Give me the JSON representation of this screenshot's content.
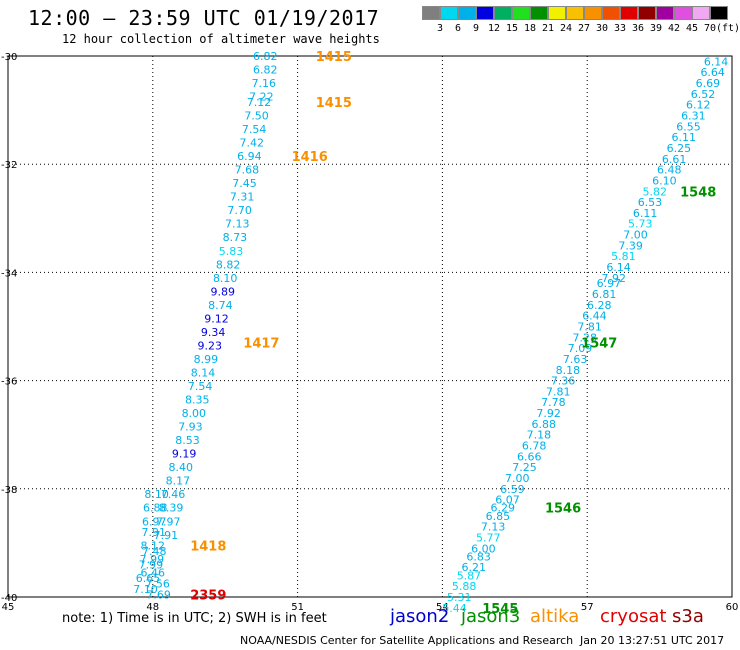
{
  "header": {
    "title": "12:00 – 23:59 UTC 01/19/2017",
    "subtitle": "12 hour collection of altimeter wave heights"
  },
  "color_scale": {
    "colors": [
      "#7f7f7f",
      "#00d8f0",
      "#00b0e8",
      "#0000e0",
      "#00b060",
      "#20e020",
      "#009000",
      "#f0f000",
      "#f8c000",
      "#f89000",
      "#f05000",
      "#e00000",
      "#900000",
      "#a000a0",
      "#e050e0",
      "#f0a8f0",
      "#000000"
    ],
    "labels": [
      "3",
      "6",
      "9",
      "12",
      "15",
      "18",
      "21",
      "24",
      "27",
      "30",
      "33",
      "36",
      "39",
      "42",
      "45",
      "70",
      "(ft)"
    ]
  },
  "chart_data": {
    "type": "scatter",
    "xlim": [
      45,
      60
    ],
    "ylim": [
      -40,
      -30
    ],
    "x_ticks": [
      "45",
      "48",
      "51",
      "54",
      "57",
      "60"
    ],
    "y_ticks": [
      "-30",
      "-32",
      "-34",
      "-36",
      "-38",
      "-40"
    ],
    "grid": true,
    "series": [
      {
        "name": "track1",
        "points": [
          {
            "lon": 50.33,
            "lat": -30.0,
            "v": "6.82",
            "c": "#00b0e8"
          },
          {
            "lon": 50.33,
            "lat": -30.25,
            "v": "6.82",
            "c": "#00b0e8"
          },
          {
            "lon": 50.3,
            "lat": -30.5,
            "v": "7.16",
            "c": "#00b0e8"
          },
          {
            "lon": 50.25,
            "lat": -30.75,
            "v": "7.22",
            "c": "#00b0e8"
          },
          {
            "lon": 50.2,
            "lat": -30.85,
            "v": "7.12",
            "c": "#00b0e8"
          },
          {
            "lon": 50.15,
            "lat": -31.1,
            "v": "7.50",
            "c": "#00b0e8"
          },
          {
            "lon": 50.1,
            "lat": -31.35,
            "v": "7.54",
            "c": "#00b0e8"
          },
          {
            "lon": 50.05,
            "lat": -31.6,
            "v": "7.42",
            "c": "#00b0e8"
          },
          {
            "lon": 50.0,
            "lat": -31.85,
            "v": "6.94",
            "c": "#00b0e8"
          },
          {
            "lon": 49.95,
            "lat": -32.1,
            "v": "7.68",
            "c": "#00b0e8"
          },
          {
            "lon": 49.9,
            "lat": -32.35,
            "v": "7.45",
            "c": "#00b0e8"
          },
          {
            "lon": 49.85,
            "lat": -32.6,
            "v": "7.31",
            "c": "#00b0e8"
          },
          {
            "lon": 49.8,
            "lat": -32.85,
            "v": "7.70",
            "c": "#00b0e8"
          },
          {
            "lon": 49.75,
            "lat": -33.1,
            "v": "7.13",
            "c": "#00b0e8"
          },
          {
            "lon": 49.7,
            "lat": -33.35,
            "v": "8.73",
            "c": "#00b0e8"
          },
          {
            "lon": 49.62,
            "lat": -33.6,
            "v": "5.83",
            "c": "#00d8f0"
          },
          {
            "lon": 49.56,
            "lat": -33.85,
            "v": "8.82",
            "c": "#00b0e8"
          },
          {
            "lon": 49.5,
            "lat": -34.1,
            "v": "8.10",
            "c": "#00b0e8"
          },
          {
            "lon": 49.45,
            "lat": -34.35,
            "v": "9.89",
            "c": "#0000e0"
          },
          {
            "lon": 49.4,
            "lat": -34.6,
            "v": "8.74",
            "c": "#00b0e8"
          },
          {
            "lon": 49.32,
            "lat": -34.85,
            "v": "9.12",
            "c": "#0000e0"
          },
          {
            "lon": 49.25,
            "lat": -35.1,
            "v": "9.34",
            "c": "#0000e0"
          },
          {
            "lon": 49.18,
            "lat": -35.35,
            "v": "9.23",
            "c": "#0000e0"
          },
          {
            "lon": 49.1,
            "lat": -35.6,
            "v": "8.99",
            "c": "#00b0e8"
          },
          {
            "lon": 49.04,
            "lat": -35.85,
            "v": "8.14",
            "c": "#00b0e8"
          },
          {
            "lon": 48.98,
            "lat": -36.1,
            "v": "7.54",
            "c": "#00b0e8"
          },
          {
            "lon": 48.92,
            "lat": -36.35,
            "v": "8.35",
            "c": "#00b0e8"
          },
          {
            "lon": 48.85,
            "lat": -36.6,
            "v": "8.00",
            "c": "#00b0e8"
          },
          {
            "lon": 48.78,
            "lat": -36.85,
            "v": "7.93",
            "c": "#00b0e8"
          },
          {
            "lon": 48.72,
            "lat": -37.1,
            "v": "8.53",
            "c": "#00b0e8"
          },
          {
            "lon": 48.65,
            "lat": -37.35,
            "v": "9.19",
            "c": "#0000e0"
          },
          {
            "lon": 48.58,
            "lat": -37.6,
            "v": "8.40",
            "c": "#00b0e8"
          },
          {
            "lon": 48.52,
            "lat": -37.85,
            "v": "8.17",
            "c": "#00b0e8"
          },
          {
            "lon": 48.42,
            "lat": -38.1,
            "v": "7.46",
            "c": "#00b0e8"
          },
          {
            "lon": 48.38,
            "lat": -38.35,
            "v": "8.39",
            "c": "#00b0e8"
          },
          {
            "lon": 48.32,
            "lat": -38.6,
            "v": "7.97",
            "c": "#00b0e8"
          },
          {
            "lon": 48.27,
            "lat": -38.85,
            "v": "7.91",
            "c": "#00b0e8"
          }
        ]
      },
      {
        "name": "track2",
        "points": [
          {
            "lon": 48.08,
            "lat": -38.1,
            "v": "8.10",
            "c": "#00b0e8"
          },
          {
            "lon": 48.05,
            "lat": -38.35,
            "v": "6.88",
            "c": "#00b0e8"
          },
          {
            "lon": 48.03,
            "lat": -38.6,
            "v": "6.97",
            "c": "#00b0e8"
          },
          {
            "lon": 48.02,
            "lat": -38.8,
            "v": "7.91",
            "c": "#00b0e8"
          },
          {
            "lon": 48.0,
            "lat": -39.05,
            "v": "8.12",
            "c": "#00b0e8"
          },
          {
            "lon": 48.03,
            "lat": -39.15,
            "v": "7.48",
            "c": "#00b0e8"
          },
          {
            "lon": 47.98,
            "lat": -39.3,
            "v": "7.99",
            "c": "#00b0e8"
          },
          {
            "lon": 47.96,
            "lat": -39.4,
            "v": "7.99",
            "c": "#00b0e8"
          },
          {
            "lon": 48.0,
            "lat": -39.55,
            "v": "6.46",
            "c": "#00b0e8"
          },
          {
            "lon": 47.9,
            "lat": -39.65,
            "v": "6.65",
            "c": "#00b0e8"
          },
          {
            "lon": 48.1,
            "lat": -39.75,
            "v": "7.56",
            "c": "#00b0e8"
          },
          {
            "lon": 47.85,
            "lat": -39.85,
            "v": "7.10",
            "c": "#00b0e8"
          },
          {
            "lon": 48.12,
            "lat": -39.95,
            "v": "7.69",
            "c": "#00b0e8"
          }
        ]
      },
      {
        "name": "track3",
        "points": [
          {
            "lon": 59.67,
            "lat": -30.1,
            "v": "6.14",
            "c": "#00b0e8"
          },
          {
            "lon": 59.6,
            "lat": -30.3,
            "v": "6.64",
            "c": "#00b0e8"
          },
          {
            "lon": 59.5,
            "lat": -30.5,
            "v": "6.69",
            "c": "#00b0e8"
          },
          {
            "lon": 59.4,
            "lat": -30.7,
            "v": "6.52",
            "c": "#00b0e8"
          },
          {
            "lon": 59.3,
            "lat": -30.9,
            "v": "6.12",
            "c": "#00b0e8"
          },
          {
            "lon": 59.2,
            "lat": -31.1,
            "v": "6.31",
            "c": "#00b0e8"
          },
          {
            "lon": 59.1,
            "lat": -31.3,
            "v": "6.55",
            "c": "#00b0e8"
          },
          {
            "lon": 59.0,
            "lat": -31.5,
            "v": "6.11",
            "c": "#00b0e8"
          },
          {
            "lon": 58.9,
            "lat": -31.7,
            "v": "6.25",
            "c": "#00b0e8"
          },
          {
            "lon": 58.8,
            "lat": -31.9,
            "v": "6.61",
            "c": "#00b0e8"
          },
          {
            "lon": 58.7,
            "lat": -32.1,
            "v": "6.48",
            "c": "#00b0e8"
          },
          {
            "lon": 58.6,
            "lat": -32.3,
            "v": "6.10",
            "c": "#00b0e8"
          },
          {
            "lon": 58.4,
            "lat": -32.5,
            "v": "5.82",
            "c": "#00d8f0"
          },
          {
            "lon": 58.3,
            "lat": -32.7,
            "v": "6.53",
            "c": "#00b0e8"
          },
          {
            "lon": 58.2,
            "lat": -32.9,
            "v": "6.11",
            "c": "#00b0e8"
          },
          {
            "lon": 58.1,
            "lat": -33.1,
            "v": "5.73",
            "c": "#00d8f0"
          },
          {
            "lon": 58.0,
            "lat": -33.3,
            "v": "7.00",
            "c": "#00b0e8"
          },
          {
            "lon": 57.9,
            "lat": -33.5,
            "v": "7.39",
            "c": "#00b0e8"
          },
          {
            "lon": 57.75,
            "lat": -33.7,
            "v": "5.81",
            "c": "#00d8f0"
          },
          {
            "lon": 57.65,
            "lat": -33.9,
            "v": "6.14",
            "c": "#00b0e8"
          },
          {
            "lon": 57.55,
            "lat": -34.1,
            "v": "7.92",
            "c": "#00b0e8"
          },
          {
            "lon": 57.45,
            "lat": -34.2,
            "v": "6.97",
            "c": "#00b0e8"
          },
          {
            "lon": 57.35,
            "lat": -34.4,
            "v": "6.81",
            "c": "#00b0e8"
          },
          {
            "lon": 57.25,
            "lat": -34.6,
            "v": "6.28",
            "c": "#00b0e8"
          },
          {
            "lon": 57.15,
            "lat": -34.8,
            "v": "6.44",
            "c": "#00b0e8"
          },
          {
            "lon": 57.05,
            "lat": -35.0,
            "v": "7.81",
            "c": "#00b0e8"
          },
          {
            "lon": 56.95,
            "lat": -35.2,
            "v": "7.28",
            "c": "#00b0e8"
          },
          {
            "lon": 56.85,
            "lat": -35.4,
            "v": "7.09",
            "c": "#00b0e8"
          },
          {
            "lon": 56.75,
            "lat": -35.6,
            "v": "7.63",
            "c": "#00b0e8"
          },
          {
            "lon": 56.6,
            "lat": -35.8,
            "v": "8.18",
            "c": "#00b0e8"
          },
          {
            "lon": 56.5,
            "lat": -36.0,
            "v": "7.36",
            "c": "#00b0e8"
          },
          {
            "lon": 56.4,
            "lat": -36.2,
            "v": "7.81",
            "c": "#00b0e8"
          },
          {
            "lon": 56.3,
            "lat": -36.4,
            "v": "7.78",
            "c": "#00b0e8"
          },
          {
            "lon": 56.2,
            "lat": -36.6,
            "v": "7.92",
            "c": "#00b0e8"
          },
          {
            "lon": 56.1,
            "lat": -36.8,
            "v": "6.88",
            "c": "#00b0e8"
          },
          {
            "lon": 56.0,
            "lat": -37.0,
            "v": "7.18",
            "c": "#00b0e8"
          },
          {
            "lon": 55.9,
            "lat": -37.2,
            "v": "6.78",
            "c": "#00b0e8"
          },
          {
            "lon": 55.8,
            "lat": -37.4,
            "v": "6.66",
            "c": "#00b0e8"
          },
          {
            "lon": 55.7,
            "lat": -37.6,
            "v": "7.25",
            "c": "#00b0e8"
          },
          {
            "lon": 55.55,
            "lat": -37.8,
            "v": "7.00",
            "c": "#00b0e8"
          },
          {
            "lon": 55.45,
            "lat": -38.0,
            "v": "6.59",
            "c": "#00b0e8"
          },
          {
            "lon": 55.35,
            "lat": -38.2,
            "v": "6.07",
            "c": "#00b0e8"
          },
          {
            "lon": 55.25,
            "lat": -38.35,
            "v": "6.29",
            "c": "#00b0e8"
          },
          {
            "lon": 55.15,
            "lat": -38.5,
            "v": "6.85",
            "c": "#00b0e8"
          },
          {
            "lon": 55.05,
            "lat": -38.7,
            "v": "7.13",
            "c": "#00b0e8"
          },
          {
            "lon": 54.95,
            "lat": -38.9,
            "v": "5.77",
            "c": "#00d8f0"
          },
          {
            "lon": 54.85,
            "lat": -39.1,
            "v": "6.00",
            "c": "#00b0e8"
          },
          {
            "lon": 54.75,
            "lat": -39.25,
            "v": "6.83",
            "c": "#00b0e8"
          },
          {
            "lon": 54.65,
            "lat": -39.45,
            "v": "6.21",
            "c": "#00b0e8"
          },
          {
            "lon": 54.55,
            "lat": -39.6,
            "v": "5.87",
            "c": "#00d8f0"
          },
          {
            "lon": 54.45,
            "lat": -39.8,
            "v": "5.88",
            "c": "#00d8f0"
          },
          {
            "lon": 54.35,
            "lat": -40.0,
            "v": "5.31",
            "c": "#00d8f0"
          },
          {
            "lon": 54.25,
            "lat": -40.2,
            "v": "5.44",
            "c": "#00d8f0"
          }
        ]
      }
    ],
    "time_labels": [
      {
        "lon": 51.75,
        "lat": -30.0,
        "t": "1415",
        "c": "#f89000"
      },
      {
        "lon": 51.75,
        "lat": -30.85,
        "t": "1415",
        "c": "#f89000"
      },
      {
        "lon": 51.25,
        "lat": -31.85,
        "t": "1416",
        "c": "#f89000"
      },
      {
        "lon": 50.25,
        "lat": -35.3,
        "t": "1417",
        "c": "#f89000"
      },
      {
        "lon": 49.15,
        "lat": -39.05,
        "t": "1418",
        "c": "#f89000"
      },
      {
        "lon": 49.15,
        "lat": -39.95,
        "t": "2359",
        "c": "#e00000"
      },
      {
        "lon": 59.3,
        "lat": -32.5,
        "t": "1548",
        "c": "#009000"
      },
      {
        "lon": 57.25,
        "lat": -35.3,
        "t": "1547",
        "c": "#009000"
      },
      {
        "lon": 56.5,
        "lat": -38.35,
        "t": "1546",
        "c": "#009000"
      },
      {
        "lon": 55.2,
        "lat": -40.2,
        "t": "1545",
        "c": "#009000"
      }
    ]
  },
  "footer": {
    "note": "note: 1) Time is in UTC; 2) SWH is in feet",
    "satellites": [
      {
        "name": "jason2",
        "color": "#0000d0"
      },
      {
        "name": "jason3",
        "color": "#009000"
      },
      {
        "name": "altika",
        "color": "#f89000"
      },
      {
        "name": "cryosat",
        "color": "#e00000"
      },
      {
        "name": "s3a",
        "color": "#900000"
      }
    ],
    "credit": "NOAA/NESDIS Center for Satellite Applications and Research",
    "timestamp": "Jan 20 13:27:51 UTC 2017"
  }
}
